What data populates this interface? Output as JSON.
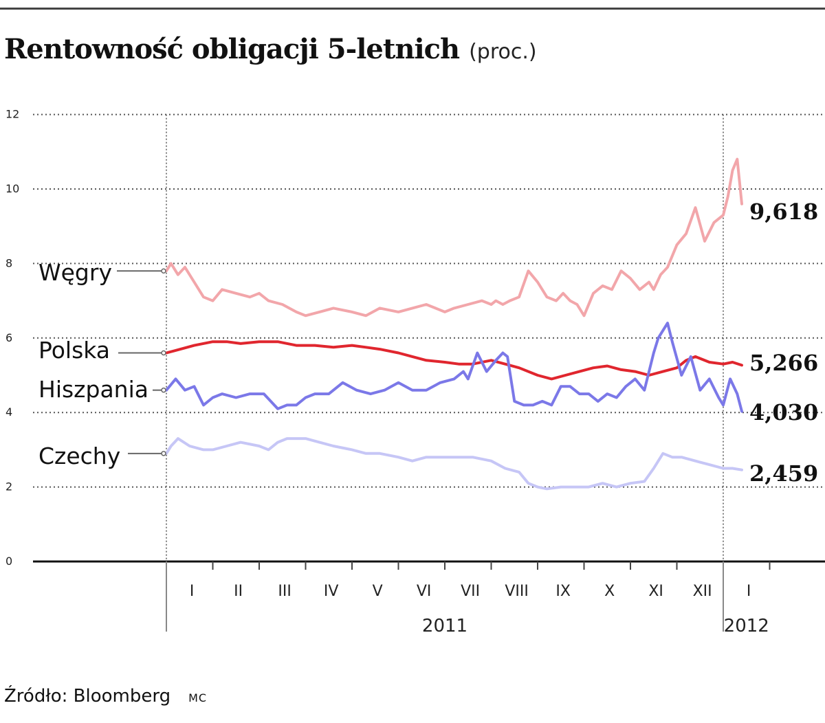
{
  "title": "Rentowność obligacji 5-letnich",
  "title_unit": "(proc.)",
  "source": "Źródło: Bloomberg",
  "author": "MC",
  "chart_data": {
    "type": "line",
    "title": "Rentowność obligacji 5-letnich",
    "ylabel": "(proc.)",
    "ylim": [
      0,
      12
    ],
    "yticks": [
      0,
      2,
      4,
      6,
      8,
      10,
      12
    ],
    "ytick_labels": [
      "0",
      "2",
      "4",
      "6",
      "8",
      "10",
      "12"
    ],
    "xlim": [
      0,
      14
    ],
    "grid": "horizontal dotted",
    "legend": "labels at left edge of lines",
    "months": [
      "I",
      "II",
      "III",
      "IV",
      "V",
      "VI",
      "VII",
      "VIII",
      "IX",
      "X",
      "XI",
      "XII",
      "I"
    ],
    "years": [
      {
        "label": "2011",
        "center": 6.0
      },
      {
        "label": "2012",
        "center": 12.5
      }
    ],
    "series": [
      {
        "name": "Węgry",
        "color": "#f2a6aa",
        "final_label": "9,618",
        "x": [
          0,
          0.1,
          0.25,
          0.4,
          0.6,
          0.8,
          1.0,
          1.2,
          1.5,
          1.8,
          2.0,
          2.2,
          2.5,
          2.8,
          3.0,
          3.3,
          3.6,
          4.0,
          4.3,
          4.6,
          5.0,
          5.3,
          5.6,
          5.8,
          6.0,
          6.2,
          6.5,
          6.8,
          7.0,
          7.1,
          7.25,
          7.4,
          7.6,
          7.8,
          8.0,
          8.2,
          8.4,
          8.55,
          8.7,
          8.85,
          9.0,
          9.2,
          9.4,
          9.6,
          9.8,
          10.0,
          10.2,
          10.4,
          10.5,
          10.65,
          10.8,
          11.0,
          11.2,
          11.4,
          11.6,
          11.8,
          12.0,
          12.1,
          12.2,
          12.3,
          12.4
        ],
        "y": [
          7.8,
          8.0,
          7.7,
          7.9,
          7.5,
          7.1,
          7.0,
          7.3,
          7.2,
          7.1,
          7.2,
          7.0,
          6.9,
          6.7,
          6.6,
          6.7,
          6.8,
          6.7,
          6.6,
          6.8,
          6.7,
          6.8,
          6.9,
          6.8,
          6.7,
          6.8,
          6.9,
          7.0,
          6.9,
          7.0,
          6.9,
          7.0,
          7.1,
          7.8,
          7.5,
          7.1,
          7.0,
          7.2,
          7.0,
          6.9,
          6.6,
          7.2,
          7.4,
          7.3,
          7.8,
          7.6,
          7.3,
          7.5,
          7.3,
          7.7,
          7.9,
          8.5,
          8.8,
          9.5,
          8.6,
          9.1,
          9.3,
          9.8,
          10.5,
          10.8,
          9.6
        ]
      },
      {
        "name": "Polska",
        "color": "#e0262e",
        "final_label": "5,266",
        "x": [
          0,
          0.3,
          0.6,
          1.0,
          1.3,
          1.6,
          2.0,
          2.4,
          2.8,
          3.2,
          3.6,
          4.0,
          4.3,
          4.6,
          5.0,
          5.3,
          5.6,
          6.0,
          6.3,
          6.6,
          7.0,
          7.3,
          7.6,
          8.0,
          8.3,
          8.6,
          8.9,
          9.2,
          9.5,
          9.8,
          10.1,
          10.4,
          10.7,
          11.0,
          11.2,
          11.4,
          11.7,
          12.0,
          12.2,
          12.4
        ],
        "y": [
          5.6,
          5.7,
          5.8,
          5.9,
          5.9,
          5.85,
          5.9,
          5.9,
          5.8,
          5.8,
          5.75,
          5.8,
          5.75,
          5.7,
          5.6,
          5.5,
          5.4,
          5.35,
          5.3,
          5.3,
          5.4,
          5.3,
          5.2,
          5.0,
          4.9,
          5.0,
          5.1,
          5.2,
          5.25,
          5.15,
          5.1,
          5.0,
          5.1,
          5.2,
          5.4,
          5.5,
          5.35,
          5.3,
          5.35,
          5.27
        ]
      },
      {
        "name": "Hiszpania",
        "color": "#7b78e8",
        "final_label": "4,030",
        "x": [
          0,
          0.2,
          0.4,
          0.6,
          0.8,
          1.0,
          1.2,
          1.5,
          1.8,
          2.1,
          2.4,
          2.6,
          2.8,
          3.0,
          3.2,
          3.5,
          3.8,
          4.1,
          4.4,
          4.7,
          5.0,
          5.3,
          5.6,
          5.9,
          6.2,
          6.4,
          6.5,
          6.7,
          6.9,
          7.1,
          7.25,
          7.35,
          7.5,
          7.7,
          7.9,
          8.1,
          8.3,
          8.5,
          8.7,
          8.9,
          9.1,
          9.3,
          9.5,
          9.7,
          9.9,
          10.1,
          10.3,
          10.5,
          10.6,
          10.8,
          10.9,
          11.1,
          11.3,
          11.5,
          11.7,
          11.9,
          12.0,
          12.15,
          12.3,
          12.4
        ],
        "y": [
          4.6,
          4.9,
          4.6,
          4.7,
          4.2,
          4.4,
          4.5,
          4.4,
          4.5,
          4.5,
          4.1,
          4.2,
          4.2,
          4.4,
          4.5,
          4.5,
          4.8,
          4.6,
          4.5,
          4.6,
          4.8,
          4.6,
          4.6,
          4.8,
          4.9,
          5.1,
          4.9,
          5.6,
          5.1,
          5.4,
          5.6,
          5.5,
          4.3,
          4.2,
          4.2,
          4.3,
          4.2,
          4.7,
          4.7,
          4.5,
          4.5,
          4.3,
          4.5,
          4.4,
          4.7,
          4.9,
          4.6,
          5.6,
          6.0,
          6.4,
          5.9,
          5.0,
          5.5,
          4.6,
          4.9,
          4.4,
          4.2,
          4.9,
          4.5,
          4.03
        ]
      },
      {
        "name": "Czechy",
        "color": "#c6c6f6",
        "final_label": "2,459",
        "x": [
          0,
          0.1,
          0.25,
          0.5,
          0.8,
          1.0,
          1.3,
          1.6,
          2.0,
          2.2,
          2.4,
          2.6,
          2.8,
          3.0,
          3.3,
          3.6,
          4.0,
          4.3,
          4.6,
          5.0,
          5.3,
          5.6,
          6.0,
          6.3,
          6.6,
          7.0,
          7.3,
          7.6,
          7.8,
          8.0,
          8.2,
          8.5,
          8.8,
          9.1,
          9.4,
          9.7,
          10.0,
          10.3,
          10.5,
          10.7,
          10.9,
          11.1,
          11.4,
          11.7,
          12.0,
          12.2,
          12.4
        ],
        "y": [
          2.9,
          3.1,
          3.3,
          3.1,
          3.0,
          3.0,
          3.1,
          3.2,
          3.1,
          3.0,
          3.2,
          3.3,
          3.3,
          3.3,
          3.2,
          3.1,
          3.0,
          2.9,
          2.9,
          2.8,
          2.7,
          2.8,
          2.8,
          2.8,
          2.8,
          2.7,
          2.5,
          2.4,
          2.1,
          2.0,
          1.95,
          2.0,
          2.0,
          2.0,
          2.1,
          2.0,
          2.1,
          2.15,
          2.5,
          2.9,
          2.8,
          2.8,
          2.7,
          2.6,
          2.5,
          2.5,
          2.46
        ]
      }
    ]
  }
}
